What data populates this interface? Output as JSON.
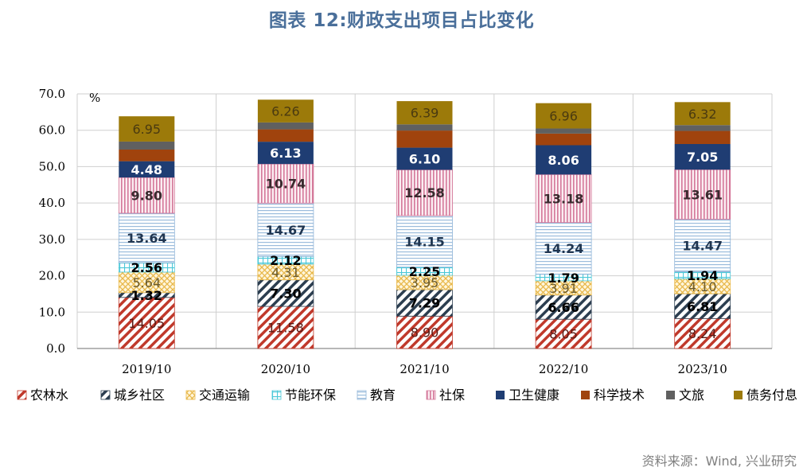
{
  "title": "图表 12:财政支出项目占比变化",
  "source": "资料来源：Wind, 兴业研究",
  "chart_data": {
    "type": "bar",
    "stacked": true,
    "unit_label": "%",
    "ylim": [
      0,
      70
    ],
    "yticks": [
      "0.0",
      "10.0",
      "20.0",
      "30.0",
      "40.0",
      "50.0",
      "60.0",
      "70.0"
    ],
    "grid": true,
    "legend_position": "bottom",
    "categories": [
      "2019/10",
      "2020/10",
      "2021/10",
      "2022/10",
      "2023/10"
    ],
    "series": [
      {
        "name": "农林水",
        "color": "#c0392b",
        "pattern": "diag-red",
        "labels": [
          "14.05",
          "11.58",
          "8.90",
          "8.05",
          "8.24"
        ],
        "values": [
          14.05,
          11.58,
          8.9,
          8.05,
          8.24
        ]
      },
      {
        "name": "城乡社区",
        "color": "#2c3e50",
        "pattern": "diag-navy",
        "labels": [
          "1.32",
          "7.30",
          "7.29",
          "6.66",
          "6.81"
        ],
        "values": [
          1.32,
          7.3,
          7.29,
          6.66,
          6.81
        ]
      },
      {
        "name": "交通运输",
        "color": "#e8b84a",
        "pattern": "cross-yellow",
        "labels": [
          "5.64",
          "4.31",
          "3.95",
          "3.91",
          "4.10"
        ],
        "values": [
          5.64,
          4.31,
          3.95,
          3.91,
          4.1
        ]
      },
      {
        "name": "节能环保",
        "color": "#4bc8d8",
        "pattern": "grid-cyan",
        "labels": [
          "2.56",
          "2.12",
          "2.25",
          "1.79",
          "1.94"
        ],
        "values": [
          2.56,
          2.12,
          2.25,
          1.79,
          1.94
        ]
      },
      {
        "name": "教育",
        "color": "#8fb4d8",
        "pattern": "hlines-blue",
        "labels": [
          "13.64",
          "14.67",
          "14.15",
          "14.24",
          "14.47"
        ],
        "values": [
          13.64,
          14.67,
          14.15,
          14.24,
          14.47
        ]
      },
      {
        "name": "社保",
        "color": "#d4789a",
        "pattern": "vlines-pink",
        "labels": [
          "9.80",
          "10.74",
          "12.58",
          "13.18",
          "13.61"
        ],
        "values": [
          9.8,
          10.74,
          12.58,
          13.18,
          13.61
        ]
      },
      {
        "name": "卫生健康",
        "color": "#1f3d73",
        "pattern": "solid",
        "labels": [
          "4.48",
          "6.13",
          "6.10",
          "8.06",
          "7.05"
        ],
        "values": [
          4.48,
          6.13,
          6.1,
          8.06,
          7.05
        ]
      },
      {
        "name": "科学技术",
        "color": "#a0430d",
        "pattern": "solid",
        "labels": [
          "",
          "",
          "",
          "",
          ""
        ],
        "values": [
          3.2,
          3.4,
          4.7,
          3.2,
          3.6
        ]
      },
      {
        "name": "文旅",
        "color": "#606060",
        "pattern": "solid",
        "labels": [
          "",
          "",
          "",
          "",
          ""
        ],
        "values": [
          2.2,
          1.9,
          1.7,
          1.4,
          1.6
        ]
      },
      {
        "name": "债务付息",
        "color": "#9c7a0a",
        "pattern": "solid",
        "labels": [
          "6.95",
          "6.26",
          "6.39",
          "6.96",
          "6.32"
        ],
        "values": [
          6.95,
          6.26,
          6.39,
          6.96,
          6.32
        ]
      }
    ]
  }
}
